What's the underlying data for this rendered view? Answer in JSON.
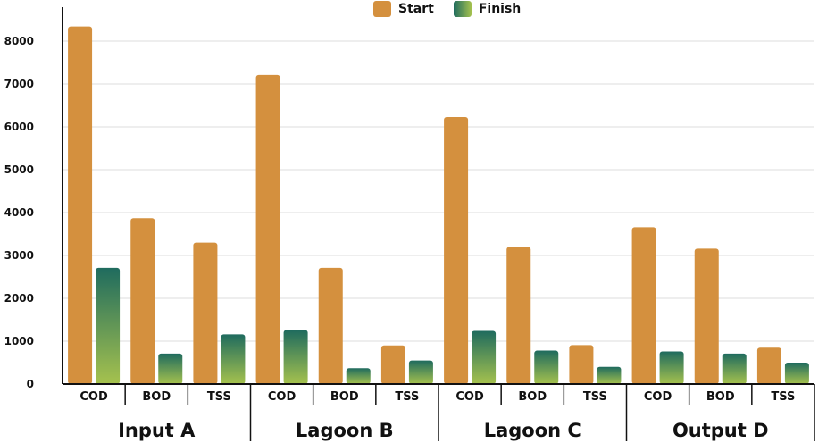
{
  "legend": {
    "start_label": "Start",
    "finish_label": "Finish"
  },
  "colors": {
    "start": "#d4903e",
    "finish_top": "#1f6b5e",
    "finish_bottom": "#a6c24e",
    "grid": "#dcdcdc",
    "axis": "#111111"
  },
  "chart_data": {
    "type": "bar",
    "groups": [
      {
        "name": "Input A",
        "categories": [
          "COD",
          "BOD",
          "TSS"
        ],
        "start": [
          8340,
          3870,
          3300
        ],
        "finish": [
          2710,
          710,
          1160
        ]
      },
      {
        "name": "Lagoon B",
        "categories": [
          "COD",
          "BOD",
          "TSS"
        ],
        "start": [
          7210,
          2710,
          900
        ],
        "finish": [
          1260,
          370,
          550
        ]
      },
      {
        "name": "Lagoon C",
        "categories": [
          "COD",
          "BOD",
          "TSS"
        ],
        "start": [
          6230,
          3200,
          910
        ],
        "finish": [
          1240,
          780,
          400
        ]
      },
      {
        "name": "Output D",
        "categories": [
          "COD",
          "BOD",
          "TSS"
        ],
        "start": [
          3660,
          3160,
          850
        ],
        "finish": [
          760,
          710,
          500
        ]
      }
    ],
    "series": [
      {
        "name": "Start"
      },
      {
        "name": "Finish"
      }
    ],
    "yticks": [
      0,
      1000,
      2000,
      3000,
      4000,
      5000,
      6000,
      7000,
      8000
    ],
    "ylim": [
      0,
      8500
    ],
    "legend_position": "top-center",
    "grid": true
  }
}
